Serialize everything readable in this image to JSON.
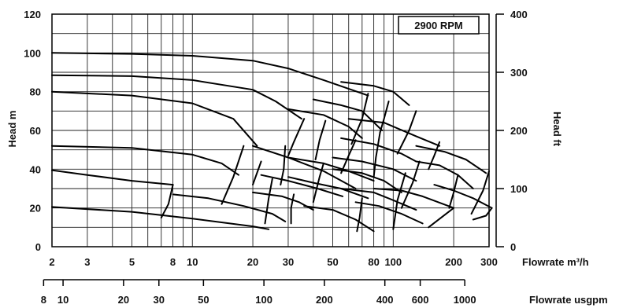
{
  "chart_data": {
    "type": "line",
    "annotation": "2900 RPM",
    "y_left_label": "Head m",
    "y_right_label": "Head ft",
    "x_label_metric": "Flowrate m³/h",
    "x_label_us": "Flowrate usgpm",
    "x_scale": "log",
    "x_range_m3h": [
      2,
      300
    ],
    "y_range_m": [
      0,
      120
    ],
    "y_range_ft": [
      0,
      400
    ],
    "grid": true,
    "y_left_ticks": [
      0,
      20,
      40,
      60,
      80,
      100,
      120
    ],
    "y_right_ticks": [
      0,
      100,
      200,
      300,
      400
    ],
    "x_ticks_m3h": [
      2,
      3,
      5,
      8,
      10,
      20,
      30,
      50,
      80,
      100,
      200,
      300
    ],
    "x_ticks_usgpm": [
      8,
      10,
      20,
      30,
      50,
      100,
      200,
      400,
      600,
      1000
    ],
    "series": [
      {
        "x": [
          2,
          5,
          10,
          20,
          30,
          45,
          75
        ],
        "y": [
          100,
          99.5,
          98.5,
          96,
          92,
          86,
          78
        ]
      },
      {
        "x": [
          2,
          5,
          10,
          20,
          26,
          35
        ],
        "y": [
          88.5,
          88,
          86,
          81,
          75,
          66
        ]
      },
      {
        "x": [
          2,
          5,
          10,
          16,
          21
        ],
        "y": [
          80,
          78,
          74,
          66,
          52
        ]
      },
      {
        "x": [
          2,
          5,
          10,
          14,
          17
        ],
        "y": [
          52,
          51,
          47.5,
          43,
          37
        ]
      },
      {
        "x": [
          2,
          3,
          5,
          8
        ],
        "y": [
          39.5,
          37,
          34,
          32
        ]
      },
      {
        "x": [
          2,
          5,
          10,
          20,
          24
        ],
        "y": [
          20.5,
          18,
          14.5,
          10.5,
          9
        ]
      },
      {
        "x": [
          55,
          80,
          100,
          120
        ],
        "y": [
          85,
          83,
          80,
          73
        ]
      },
      {
        "x": [
          40,
          55,
          70,
          88
        ],
        "y": [
          76,
          73,
          70,
          60
        ]
      },
      {
        "x": [
          30,
          45,
          60,
          70
        ],
        "y": [
          71,
          68,
          62,
          56
        ]
      },
      {
        "x": [
          60,
          90,
          130,
          170
        ],
        "y": [
          66,
          64,
          57,
          52
        ]
      },
      {
        "x": [
          55,
          80,
          110,
          130
        ],
        "y": [
          56,
          53,
          48,
          44
        ]
      },
      {
        "x": [
          50,
          70,
          100,
          130
        ],
        "y": [
          46,
          44,
          40,
          34
        ]
      },
      {
        "x": [
          130,
          180,
          230,
          290
        ],
        "y": [
          52,
          49,
          45,
          38
        ]
      },
      {
        "x": [
          130,
          170,
          210,
          250
        ],
        "y": [
          44,
          42,
          37,
          30
        ]
      },
      {
        "x": [
          20,
          30,
          45,
          65
        ],
        "y": [
          52,
          46,
          39,
          30
        ]
      },
      {
        "x": [
          22,
          30,
          42,
          56
        ],
        "y": [
          37,
          34,
          30,
          26
        ]
      },
      {
        "x": [
          30,
          45,
          60,
          80
        ],
        "y": [
          46,
          43,
          39,
          34
        ]
      },
      {
        "x": [
          50,
          70,
          90,
          110
        ],
        "y": [
          40,
          38,
          34,
          28
        ]
      },
      {
        "x": [
          55,
          80,
          100,
          130
        ],
        "y": [
          30,
          28,
          24,
          19
        ]
      },
      {
        "x": [
          8,
          12,
          18,
          25,
          29
        ],
        "y": [
          27,
          25,
          21,
          17,
          13
        ]
      },
      {
        "x": [
          20,
          28,
          34,
          40
        ],
        "y": [
          28,
          26,
          23,
          19
        ]
      },
      {
        "x": [
          30,
          40,
          55,
          75
        ],
        "y": [
          36,
          33,
          30,
          25
        ]
      },
      {
        "x": [
          36,
          50,
          65,
          80
        ],
        "y": [
          21,
          19,
          14,
          8
        ]
      },
      {
        "x": [
          65,
          85,
          110,
          140
        ],
        "y": [
          23,
          21,
          17,
          12
        ]
      },
      {
        "x": [
          80,
          110,
          140,
          200
        ],
        "y": [
          30,
          29,
          26,
          20
        ]
      },
      {
        "x": [
          160,
          200,
          250,
          310
        ],
        "y": [
          32,
          29,
          25,
          20
        ]
      },
      {
        "x": [
          18,
          16,
          14
        ],
        "y": [
          52,
          36,
          22
        ]
      },
      {
        "x": [
          8,
          7.6,
          7
        ],
        "y": [
          32,
          22,
          15
        ]
      },
      {
        "x": [
          25,
          24,
          23
        ],
        "y": [
          35,
          25,
          12
        ]
      },
      {
        "x": [
          22,
          20
        ],
        "y": [
          44,
          32
        ]
      },
      {
        "x": [
          29,
          28.5,
          27.5
        ],
        "y": [
          52,
          40,
          32
        ]
      },
      {
        "x": [
          32,
          31,
          31
        ],
        "y": [
          27,
          20,
          12
        ]
      },
      {
        "x": [
          36,
          32,
          30
        ],
        "y": [
          66,
          54,
          47
        ]
      },
      {
        "x": [
          46,
          43,
          41
        ],
        "y": [
          65,
          55,
          45
        ]
      },
      {
        "x": [
          65,
          60,
          55
        ],
        "y": [
          55,
          47,
          38
        ]
      },
      {
        "x": [
          45,
          43,
          40
        ],
        "y": [
          43,
          36,
          23
        ]
      },
      {
        "x": [
          75,
          70,
          62
        ],
        "y": [
          79,
          66,
          53
        ]
      },
      {
        "x": [
          95,
          90,
          86
        ],
        "y": [
          75,
          66,
          59
        ]
      },
      {
        "x": [
          86,
          82,
          80
        ],
        "y": [
          59,
          46,
          36
        ]
      },
      {
        "x": [
          70,
          68,
          66
        ],
        "y": [
          25,
          15,
          8
        ]
      },
      {
        "x": [
          115,
          105,
          100
        ],
        "y": [
          38,
          24,
          9
        ]
      },
      {
        "x": [
          130,
          120,
          105
        ],
        "y": [
          70,
          60,
          48
        ]
      },
      {
        "x": [
          170,
          160,
          150
        ],
        "y": [
          54,
          47,
          40
        ]
      },
      {
        "x": [
          135,
          125,
          110
        ],
        "y": [
          44,
          33,
          20
        ]
      },
      {
        "x": [
          210,
          200,
          190
        ],
        "y": [
          37,
          28,
          20
        ]
      },
      {
        "x": [
          300,
          280,
          245
        ],
        "y": [
          39,
          29,
          17
        ]
      },
      {
        "x": [
          310,
          290,
          250
        ],
        "y": [
          20,
          16,
          14
        ]
      },
      {
        "x": [
          150,
          200
        ],
        "y": [
          10,
          20
        ]
      }
    ]
  }
}
